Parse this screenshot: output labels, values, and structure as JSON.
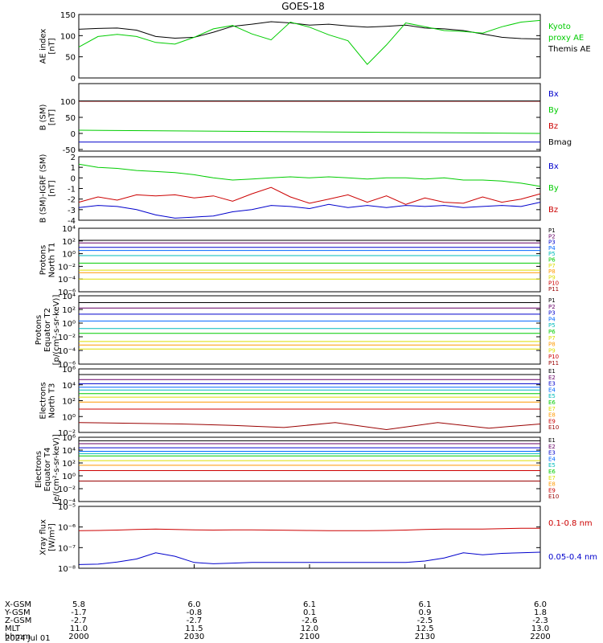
{
  "title": "GOES-18",
  "colors": {
    "black": "#000000",
    "green": "#00cc00",
    "blue": "#0000cc",
    "red": "#cc0000",
    "orange": "#ff9900",
    "yellow": "#dddd00",
    "cyan": "#00bbbb",
    "dark_red": "#990000"
  },
  "chart_data": [
    {
      "type": "line",
      "id": "ae",
      "ylabel": [
        "AE index",
        "[nT]"
      ],
      "ylim": [
        0,
        150
      ],
      "yticks": [
        "0",
        "50",
        "100",
        "150"
      ],
      "log": false,
      "x": [
        0,
        5,
        10,
        15,
        20,
        25,
        30,
        35,
        40,
        45,
        50,
        55,
        60,
        65,
        70,
        75,
        80,
        85,
        90,
        95,
        100,
        105,
        110,
        115,
        120
      ],
      "series": [
        {
          "name": "Themis AE",
          "color": "#000000",
          "values": [
            115,
            117,
            118,
            113,
            98,
            94,
            96,
            108,
            122,
            127,
            133,
            130,
            125,
            127,
            123,
            120,
            122,
            125,
            118,
            116,
            112,
            104,
            96,
            93,
            92
          ]
        },
        {
          "name": "Kyoto proxy AE",
          "color": "#00cc00",
          "values": [
            73,
            98,
            103,
            98,
            84,
            80,
            96,
            116,
            124,
            104,
            90,
            132,
            120,
            102,
            88,
            32,
            78,
            130,
            121,
            112,
            110,
            106,
            121,
            132,
            136
          ]
        }
      ],
      "legend": [
        "Kyoto",
        "proxy AE",
        "Themis AE"
      ]
    },
    {
      "type": "line",
      "id": "bsm",
      "ylabel": [
        "B (SM)",
        "[nT]"
      ],
      "ylim": [
        -55,
        155
      ],
      "yticks": [
        "-50",
        "0",
        "50",
        "100"
      ],
      "log": false,
      "series": [
        {
          "name": "Bx",
          "color": "#0000cc",
          "values": [
            -27,
            -27
          ]
        },
        {
          "name": "By",
          "color": "#00cc00",
          "values": [
            10,
            0
          ]
        },
        {
          "name": "Bz",
          "color": "#cc0000",
          "values": [
            100,
            100
          ]
        },
        {
          "name": "Bmag",
          "color": "#000000",
          "values": [
            101,
            101
          ]
        }
      ],
      "legend": [
        "Bx",
        "By",
        "Bz",
        "Bmag"
      ]
    },
    {
      "type": "line",
      "id": "bigrf",
      "ylabel": [
        "B (SM)-IGRF (SM)",
        "[nT]"
      ],
      "ylim": [
        -4,
        2
      ],
      "yticks": [
        "-4",
        "-3",
        "-2",
        "-1",
        "0",
        "1",
        "2"
      ],
      "log": false,
      "x": [
        0,
        5,
        10,
        15,
        20,
        25,
        30,
        35,
        40,
        45,
        50,
        55,
        60,
        65,
        70,
        75,
        80,
        85,
        90,
        95,
        100,
        105,
        110,
        115,
        120
      ],
      "series": [
        {
          "name": "Bx",
          "color": "#0000cc",
          "values": [
            -2.8,
            -2.6,
            -2.7,
            -3.0,
            -3.5,
            -3.8,
            -3.7,
            -3.6,
            -3.2,
            -3.0,
            -2.6,
            -2.7,
            -2.9,
            -2.5,
            -2.8,
            -2.6,
            -2.8,
            -2.6,
            -2.7,
            -2.6,
            -2.8,
            -2.7,
            -2.6,
            -2.7,
            -2.3
          ]
        },
        {
          "name": "By",
          "color": "#00cc00",
          "values": [
            1.3,
            1.0,
            0.9,
            0.7,
            0.6,
            0.5,
            0.3,
            0.0,
            -0.2,
            -0.1,
            0.0,
            0.1,
            0.0,
            0.1,
            0.0,
            -0.1,
            0.0,
            0.0,
            -0.1,
            0.0,
            -0.2,
            -0.2,
            -0.3,
            -0.5,
            -0.8
          ]
        },
        {
          "name": "Bz",
          "color": "#cc0000",
          "values": [
            -2.3,
            -1.8,
            -2.1,
            -1.6,
            -1.7,
            -1.6,
            -1.9,
            -1.7,
            -2.2,
            -1.5,
            -0.9,
            -1.8,
            -2.4,
            -2.0,
            -1.6,
            -2.3,
            -1.7,
            -2.5,
            -1.9,
            -2.3,
            -2.4,
            -1.8,
            -2.3,
            -2.0,
            -1.5
          ]
        }
      ],
      "legend": [
        "Bx",
        "By",
        "Bz"
      ]
    },
    {
      "type": "line",
      "id": "pn",
      "ylabel": [
        "Protons",
        "North T1"
      ],
      "ylim": [
        -6,
        4
      ],
      "yticks": [
        "10⁴",
        "10²",
        "10⁰",
        "10⁻²",
        "10⁻⁴",
        "10⁻⁶"
      ],
      "log": true,
      "series": [
        {
          "name": "P1",
          "color": "#000000",
          "values": [
            2.1
          ]
        },
        {
          "name": "P2",
          "color": "#660066",
          "values": [
            1.7
          ]
        },
        {
          "name": "P3",
          "color": "#0000cc",
          "values": [
            1.0
          ]
        },
        {
          "name": "P4",
          "color": "#0066ff",
          "values": [
            0.5
          ]
        },
        {
          "name": "P5",
          "color": "#00bbbb",
          "values": [
            -0.3
          ]
        },
        {
          "name": "P6",
          "color": "#00cc00",
          "values": [
            -1.5
          ]
        },
        {
          "name": "P7",
          "color": "#dddd00",
          "values": [
            -2.6
          ]
        },
        {
          "name": "P8",
          "color": "#ff9900",
          "values": [
            -3.0
          ]
        },
        {
          "name": "P9",
          "color": "#dddd00",
          "values": [
            -4.0
          ]
        },
        {
          "name": "P10",
          "color": "#cc0000",
          "values": []
        },
        {
          "name": "P11",
          "color": "#990000",
          "values": []
        }
      ],
      "legend": [
        "P1",
        "P2",
        "P3",
        "P4",
        "P5",
        "P6",
        "P7",
        "P8",
        "P9",
        "P10",
        "P11"
      ]
    },
    {
      "type": "line",
      "id": "pe",
      "ylabel": [
        "Protons",
        "Equator T2",
        "[p/(cm²-s-sr-keV)]"
      ],
      "ylim": [
        -6,
        4
      ],
      "yticks": [
        "10⁴",
        "10²",
        "10⁰",
        "10⁻²",
        "10⁻⁴",
        "10⁻⁶"
      ],
      "log": true,
      "series": [
        {
          "name": "P1",
          "color": "#000000",
          "values": [
            3.0
          ]
        },
        {
          "name": "P2",
          "color": "#660066",
          "values": [
            2.2
          ]
        },
        {
          "name": "P3",
          "color": "#0000cc",
          "values": [
            1.3
          ]
        },
        {
          "name": "P4",
          "color": "#0066ff",
          "values": [
            0.3
          ]
        },
        {
          "name": "P5",
          "color": "#00bbbb",
          "values": [
            -0.8
          ]
        },
        {
          "name": "P6",
          "color": "#00cc00",
          "values": [
            -1.5
          ]
        },
        {
          "name": "P7",
          "color": "#dddd00",
          "values": [
            -2.7
          ]
        },
        {
          "name": "P8",
          "color": "#ff9900",
          "values": [
            -3.2
          ]
        },
        {
          "name": "P9",
          "color": "#dddd00",
          "values": [
            -3.8
          ]
        },
        {
          "name": "P10",
          "color": "#cc0000",
          "values": []
        },
        {
          "name": "P11",
          "color": "#990000",
          "values": []
        }
      ],
      "legend": [
        "P1",
        "P2",
        "P3",
        "P4",
        "P5",
        "P6",
        "P7",
        "P8",
        "P9",
        "P10",
        "P11"
      ]
    },
    {
      "type": "line",
      "id": "en",
      "ylabel": [
        "Electrons",
        "North T3"
      ],
      "ylim": [
        -3,
        6
      ],
      "yticks": [
        "10⁶",
        "10⁴",
        "10²",
        "10⁰",
        "10⁻²"
      ],
      "log": true,
      "series": [
        {
          "name": "E1",
          "color": "#000000",
          "values": [
            5.2
          ]
        },
        {
          "name": "E2",
          "color": "#660066",
          "values": [
            4.5
          ]
        },
        {
          "name": "E3",
          "color": "#0000cc",
          "values": [
            3.9
          ]
        },
        {
          "name": "E4",
          "color": "#0066ff",
          "values": [
            3.4
          ]
        },
        {
          "name": "E5",
          "color": "#00bbbb",
          "values": [
            3.0
          ]
        },
        {
          "name": "E6",
          "color": "#00cc00",
          "values": [
            2.5
          ]
        },
        {
          "name": "E7",
          "color": "#dddd00",
          "values": [
            2.0
          ]
        },
        {
          "name": "E8",
          "color": "#ff9900",
          "values": [
            1.3
          ]
        },
        {
          "name": "E9",
          "color": "#cc0000",
          "values": [
            0.3
          ]
        },
        {
          "name": "E10",
          "color": "#990000",
          "values": [
            -1.6,
            -1.7,
            -1.8,
            -2.0,
            -2.3,
            -1.6,
            -2.6,
            -1.6,
            -2.4,
            -1.8
          ]
        }
      ],
      "legend": [
        "E1",
        "E2",
        "E3",
        "E4",
        "E5",
        "E6",
        "E7",
        "E8",
        "E9",
        "E10"
      ]
    },
    {
      "type": "line",
      "id": "ee",
      "ylabel": [
        "Electrons",
        "Equator T4",
        "[e/(cm²-s-sr-keV)]"
      ],
      "ylim": [
        -5,
        6
      ],
      "yticks": [
        "10⁶",
        "10⁴",
        "10²",
        "10⁰",
        "10⁻²",
        "10⁻⁴"
      ],
      "log": true,
      "series": [
        {
          "name": "E1",
          "color": "#000000",
          "values": [
            5.4
          ]
        },
        {
          "name": "E2",
          "color": "#660066",
          "values": [
            4.9
          ]
        },
        {
          "name": "E3",
          "color": "#0000cc",
          "values": [
            4.2
          ]
        },
        {
          "name": "E4",
          "color": "#0066ff",
          "values": [
            3.6
          ]
        },
        {
          "name": "E5",
          "color": "#00bbbb",
          "values": [
            3.2
          ]
        },
        {
          "name": "E6",
          "color": "#00cc00",
          "values": [
            2.8
          ]
        },
        {
          "name": "E7",
          "color": "#dddd00",
          "values": [
            2.0
          ]
        },
        {
          "name": "E8",
          "color": "#ff9900",
          "values": [
            1.2
          ]
        },
        {
          "name": "E9",
          "color": "#cc0000",
          "values": [
            0.3
          ]
        },
        {
          "name": "E10",
          "color": "#990000",
          "values": [
            -1.5
          ]
        }
      ],
      "legend": [
        "E1",
        "E2",
        "E3",
        "E4",
        "E5",
        "E6",
        "E7",
        "E8",
        "E9",
        "E10"
      ]
    },
    {
      "type": "line",
      "id": "xray",
      "ylabel": [
        "Xray flux",
        "[W/m²]"
      ],
      "ylim": [
        -8,
        -5
      ],
      "yticks": [
        "10⁻⁵",
        "10⁻⁶",
        "10⁻⁷",
        "10⁻⁸"
      ],
      "log": true,
      "x": [
        0,
        5,
        10,
        15,
        20,
        25,
        30,
        35,
        40,
        45,
        50,
        55,
        60,
        65,
        70,
        75,
        80,
        85,
        90,
        95,
        100,
        105,
        110,
        115,
        120
      ],
      "series": [
        {
          "name": "0.1-0.8 nm",
          "color": "#cc0000",
          "values": [
            -6.18,
            -6.17,
            -6.15,
            -6.12,
            -6.1,
            -6.12,
            -6.14,
            -6.15,
            -6.14,
            -6.14,
            -6.15,
            -6.16,
            -6.17,
            -6.18,
            -6.18,
            -6.18,
            -6.17,
            -6.15,
            -6.12,
            -6.1,
            -6.1,
            -6.1,
            -6.08,
            -6.06,
            -6.06
          ]
        },
        {
          "name": "0.05-0.4 nm",
          "color": "#0000cc",
          "values": [
            -7.82,
            -7.8,
            -7.7,
            -7.55,
            -7.25,
            -7.42,
            -7.72,
            -7.78,
            -7.75,
            -7.72,
            -7.72,
            -7.72,
            -7.72,
            -7.72,
            -7.72,
            -7.72,
            -7.72,
            -7.72,
            -7.65,
            -7.5,
            -7.25,
            -7.35,
            -7.28,
            -7.25,
            -7.22
          ]
        }
      ],
      "legend": [
        "0.1-0.8 nm",
        "0.05-0.4 nm"
      ]
    }
  ],
  "x_axis": {
    "ticks_x": [
      0,
      30,
      60,
      90,
      120
    ],
    "rows": [
      {
        "label": "X-GSM",
        "values": [
          "5.8",
          "6.0",
          "6.1",
          "6.1",
          "6.0"
        ]
      },
      {
        "label": "Y-GSM",
        "values": [
          "-1.7",
          "-0.8",
          "0.1",
          "0.9",
          "1.8"
        ]
      },
      {
        "label": "Z-GSM",
        "values": [
          "-2.7",
          "-2.7",
          "-2.6",
          "-2.5",
          "-2.3"
        ]
      },
      {
        "label": "MLT",
        "values": [
          "11.0",
          "11.5",
          "12.0",
          "12.5",
          "13.0"
        ]
      },
      {
        "label": "hhmm",
        "values": [
          "2000",
          "2030",
          "2100",
          "2130",
          "2200"
        ]
      }
    ],
    "date": "2024 Jul 01"
  }
}
